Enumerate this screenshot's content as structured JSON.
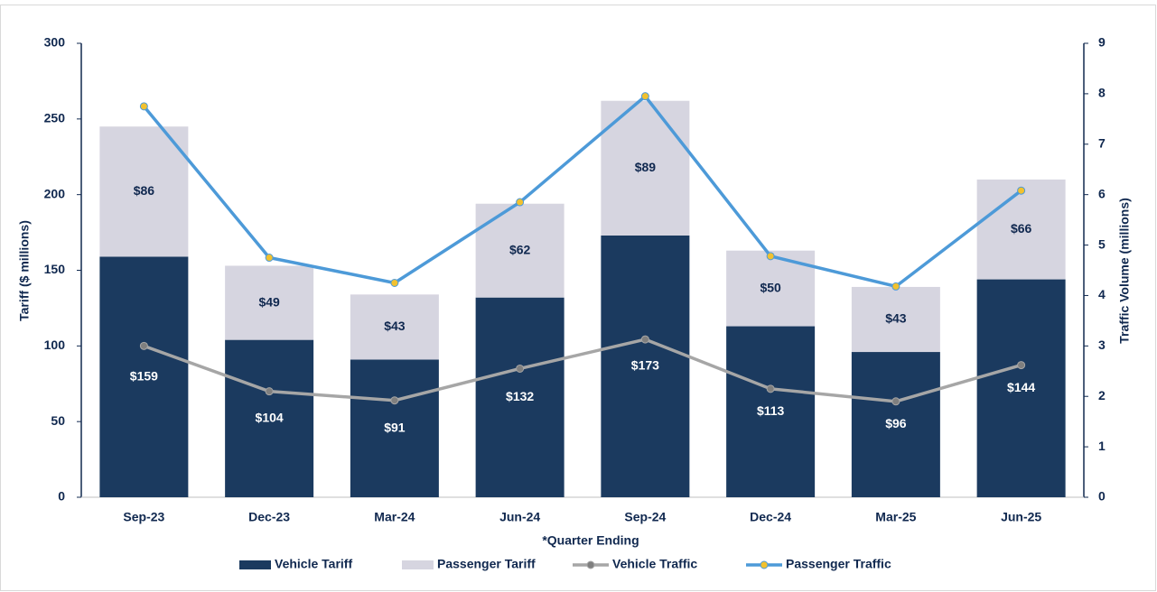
{
  "chart_data": {
    "type": "combo",
    "x_label": "*Quarter Ending",
    "y_label": "Tariff ($ millions)",
    "y2_label": "Traffic Volume (millions)",
    "categories": [
      "Sep-23",
      "Dec-23",
      "Mar-24",
      "Jun-24",
      "Sep-24",
      "Dec-24",
      "Mar-25",
      "Jun-25"
    ],
    "series": [
      {
        "name": "Vehicle Tariff",
        "type": "bar",
        "color": "#1b3a5f",
        "label_color": "#ffffff",
        "values": [
          159,
          104,
          91,
          132,
          173,
          113,
          96,
          144
        ],
        "value_labels": [
          "$159",
          "$104",
          "$91",
          "$132",
          "$173",
          "$113",
          "$96",
          "$144"
        ]
      },
      {
        "name": "Passenger Tariff",
        "type": "bar",
        "color": "#d6d5e0",
        "label_color": "#10284f",
        "values": [
          86,
          49,
          43,
          62,
          89,
          50,
          43,
          66
        ],
        "value_labels": [
          "$86",
          "$49",
          "$43",
          "$62",
          "$89",
          "$50",
          "$43",
          "$66"
        ]
      },
      {
        "name": "Vehicle Traffic",
        "type": "line",
        "axis": "y2",
        "color": "#a6a6a6",
        "marker_color": "#7f7f7f",
        "values": [
          3.0,
          2.1,
          1.92,
          2.55,
          3.13,
          2.15,
          1.9,
          2.62
        ]
      },
      {
        "name": "Passenger Traffic",
        "type": "line",
        "axis": "y2",
        "color": "#4d9ad8",
        "marker_color": "#f2c12e",
        "values": [
          7.75,
          4.75,
          4.25,
          5.85,
          7.95,
          4.78,
          4.18,
          6.08
        ]
      }
    ],
    "ylim": [
      0,
      300
    ],
    "yticks": [
      0,
      50,
      100,
      150,
      200,
      250,
      300
    ],
    "y2lim": [
      0,
      9
    ],
    "y2ticks": [
      0,
      1,
      2,
      3,
      4,
      5,
      6,
      7,
      8,
      9
    ],
    "grid": false,
    "legend": "bottom"
  }
}
